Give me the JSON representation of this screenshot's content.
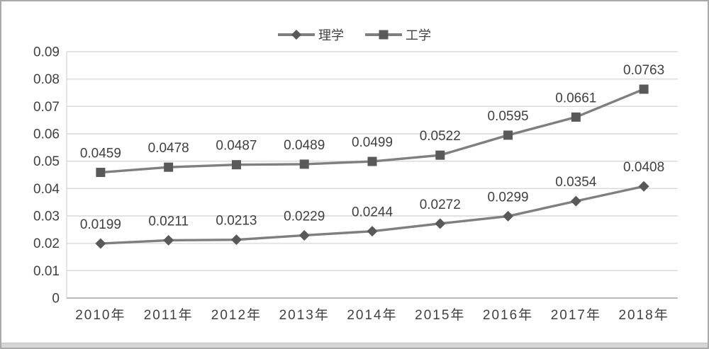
{
  "window": {
    "background": "#ffffff",
    "border_color": "#a9a9a9",
    "bottom_strip_color": "#d6d6d6"
  },
  "colors": {
    "line": "#7f7f7f",
    "marker": "#595959",
    "gridline": "#d9d9d9",
    "axis_line": "#a6a6a6",
    "text": "#404040"
  },
  "chart_data": {
    "type": "line",
    "title": "",
    "categories": [
      "2010年",
      "2011年",
      "2012年",
      "2013年",
      "2014年",
      "2015年",
      "2016年",
      "2017年",
      "2018年"
    ],
    "series": [
      {
        "name": "理学",
        "marker": "diamond",
        "values": [
          0.0199,
          0.0211,
          0.0213,
          0.0229,
          0.0244,
          0.0272,
          0.0299,
          0.0354,
          0.0408
        ],
        "labels": [
          "0.0199",
          "0.0211",
          "0.0213",
          "0.0229",
          "0.0244",
          "0.0272",
          "0.0299",
          "0.0354",
          "0.0408"
        ]
      },
      {
        "name": "工学",
        "marker": "square",
        "values": [
          0.0459,
          0.0478,
          0.0487,
          0.0489,
          0.0499,
          0.0522,
          0.0595,
          0.0661,
          0.0763
        ],
        "labels": [
          "0.0459",
          "0.0478",
          "0.0487",
          "0.0489",
          "0.0499",
          "0.0522",
          "0.0595",
          "0.0661",
          "0.0763"
        ]
      }
    ],
    "y_axis": {
      "min": 0,
      "max": 0.09,
      "step": 0.01,
      "tick_labels": [
        "0",
        "0.01",
        "0.02",
        "0.03",
        "0.04",
        "0.05",
        "0.06",
        "0.07",
        "0.08",
        "0.09"
      ]
    },
    "x_axis": {
      "label": ""
    },
    "grid": true,
    "legend_position": "top",
    "data_labels": "above"
  }
}
